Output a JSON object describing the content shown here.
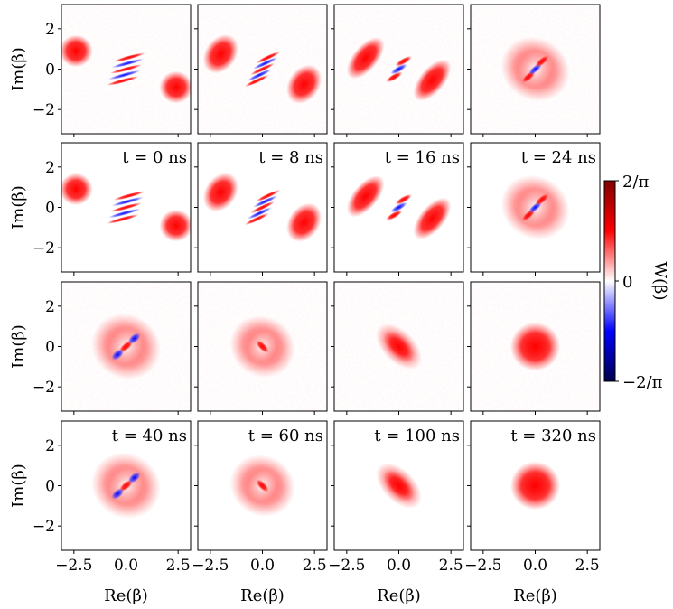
{
  "chart_data": {
    "type": "heatmap",
    "xlabel": "Re(β)",
    "ylabel": "Im(β)",
    "xlim": [
      -3.1,
      3.1
    ],
    "ylim": [
      -3.2,
      3.2
    ],
    "xticks": [
      {
        "value": -2.5,
        "label": "−2.5"
      },
      {
        "value": 0,
        "label": "0.0"
      },
      {
        "value": 2.5,
        "label": "2.5"
      }
    ],
    "yticks": [
      {
        "value": -2,
        "label": "−2"
      },
      0,
      2
    ],
    "panel_labels": [
      null,
      null,
      null,
      null,
      "t = 0 ns",
      "t = 8 ns",
      "t = 16 ns",
      "t = 24 ns",
      null,
      null,
      null,
      null,
      "t = 40 ns",
      "t = 60 ns",
      "t = 100 ns",
      "t = 320 ns"
    ],
    "colorbar": {
      "label": "W(β)",
      "lim": [
        -0.6366,
        0.6366
      ],
      "ticks": [
        {
          "value": -0.6366,
          "label": "−2/π"
        },
        0,
        {
          "value": 0.6366,
          "label": "2/π"
        }
      ],
      "colors": [
        "#00004c",
        "#0000ff",
        "#ffffff",
        "#ff0000",
        "#800000"
      ]
    }
  }
}
